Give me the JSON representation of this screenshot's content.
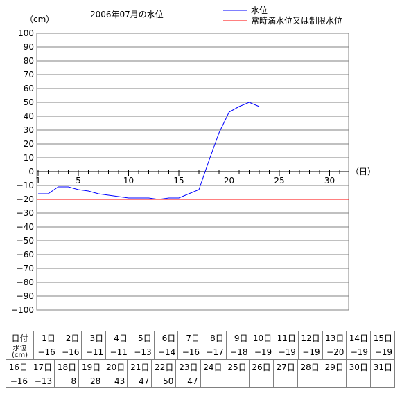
{
  "header": {
    "unit_label": "（cm）",
    "title": "2006年07月の水位",
    "day_unit": "（日）"
  },
  "legend": [
    {
      "label": "水位",
      "color": "#0000ff"
    },
    {
      "label": "常時満水位又は制限水位",
      "color": "#ff0000"
    }
  ],
  "chart_data": {
    "type": "line",
    "title": "2006年07月の水位",
    "ylabel": "（cm）",
    "xlabel": "（日）",
    "ylim": [
      -100,
      100
    ],
    "xlim": [
      1,
      31
    ],
    "y_ticks": [
      100,
      90,
      80,
      70,
      60,
      50,
      40,
      30,
      20,
      10,
      0,
      -10,
      -20,
      -30,
      -40,
      -50,
      -60,
      -70,
      -80,
      -90,
      -100
    ],
    "x_tick_labels": [
      1,
      5,
      10,
      15,
      20,
      25,
      30
    ],
    "grid": "horizontal",
    "legend_position": "top-right",
    "series": [
      {
        "name": "水位",
        "color": "#0000ff",
        "x": [
          1,
          2,
          3,
          4,
          5,
          6,
          7,
          8,
          9,
          10,
          11,
          12,
          13,
          14,
          15,
          16,
          17,
          18,
          19,
          20,
          21,
          22,
          23
        ],
        "values": [
          -16,
          -16,
          -11,
          -11,
          -13,
          -14,
          -16,
          -17,
          -18,
          -19,
          -19,
          -19,
          -20,
          -19,
          -19,
          -16,
          -13,
          8,
          28,
          43,
          47,
          50,
          47
        ]
      },
      {
        "name": "常時満水位又は制限水位",
        "color": "#ff0000",
        "x": [
          1,
          31
        ],
        "values": [
          -20,
          -20
        ]
      }
    ]
  },
  "table": {
    "row_label_day": "日付",
    "row_label_level_1": "水位",
    "row_label_level_2": "(cm)",
    "rows1": {
      "days": [
        "1日",
        "2日",
        "3日",
        "4日",
        "5日",
        "6日",
        "7日",
        "8日",
        "9日",
        "10日",
        "11日",
        "12日",
        "13日",
        "14日",
        "15日"
      ],
      "values": [
        "−16",
        "−16",
        "−11",
        "−11",
        "−13",
        "−14",
        "−16",
        "−17",
        "−18",
        "−19",
        "−19",
        "−19",
        "−20",
        "−19",
        "−19"
      ]
    },
    "rows2": {
      "days": [
        "16日",
        "17日",
        "18日",
        "19日",
        "20日",
        "21日",
        "22日",
        "23日",
        "24日",
        "25日",
        "26日",
        "27日",
        "28日",
        "29日",
        "30日",
        "31日"
      ],
      "values": [
        "−16",
        "−13",
        "8",
        "28",
        "43",
        "47",
        "50",
        "47",
        "",
        "",
        "",
        "",
        "",
        "",
        "",
        ""
      ]
    }
  }
}
